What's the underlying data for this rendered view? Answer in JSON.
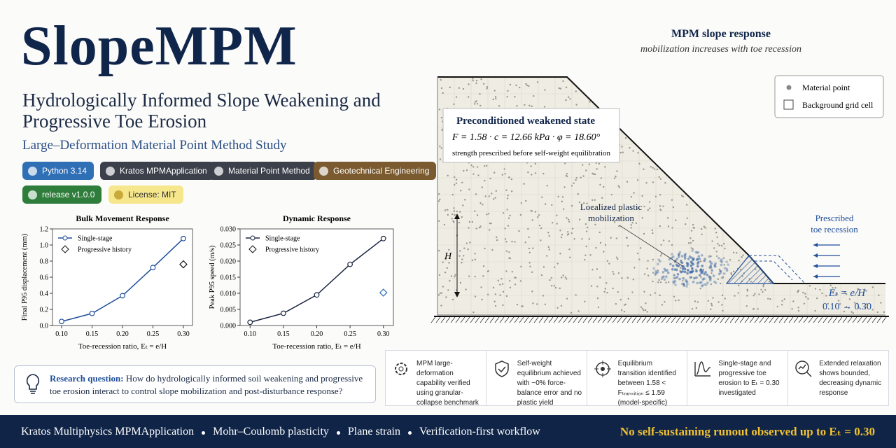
{
  "header": {
    "title": "SlopeMPM",
    "subtitle": "Hydrologically Informed Slope Weakening and Progressive Toe Erosion",
    "tagline": "Large–Deformation Material Point Method Study"
  },
  "badges": [
    {
      "label": "Python 3.14",
      "color": "#2f6fb6"
    },
    {
      "label": "Kratos MPMApplication",
      "color": "#3b404b"
    },
    {
      "label": "Material Point Method",
      "color": "#3b404b"
    },
    {
      "label": "Geotechnical Engineering",
      "color": "#7a5a2e"
    },
    {
      "label": "release v1.0.0",
      "color": "#2e7d3a"
    },
    {
      "label": "License: MIT",
      "color": "#f6e68c"
    }
  ],
  "chart_data": [
    {
      "type": "line",
      "title": "Bulk Movement Response",
      "x_label": "Toe-recession ratio, Eₜ = e/H",
      "y_label": "Final P95 displacement (mm)",
      "x": [
        0.1,
        0.15,
        0.2,
        0.25,
        0.3
      ],
      "series": [
        {
          "name": "Single-stage",
          "color": "#1f4e9a",
          "values": [
            0.05,
            0.15,
            0.37,
            0.72,
            1.08
          ]
        },
        {
          "name": "Progressive history",
          "color": "#111111",
          "values": [
            null,
            null,
            null,
            null,
            0.76
          ]
        }
      ],
      "xlim": [
        0.085,
        0.315
      ],
      "xticks": [
        {
          "value": 0.1,
          "label": "0.10"
        },
        {
          "value": 0.15,
          "label": "0.15"
        },
        {
          "value": 0.2,
          "label": "0.20"
        },
        {
          "value": 0.25,
          "label": "0.25"
        },
        {
          "value": 0.3,
          "label": "0.30"
        }
      ],
      "ylim": [
        0,
        1.2
      ],
      "yticks": [
        {
          "value": 0,
          "label": "0.0"
        },
        0.2,
        0.4,
        0.6,
        0.8,
        {
          "value": 1,
          "label": "1.0"
        },
        1.2
      ]
    },
    {
      "type": "line",
      "title": "Dynamic Response",
      "x_label": "Toe-recession ratio, Eₜ = e/H",
      "y_label": "Peak P95 speed (m/s)",
      "x": [
        0.1,
        0.15,
        0.2,
        0.25,
        0.3
      ],
      "series": [
        {
          "name": "Single-stage",
          "color": "#1a2540",
          "values": [
            0.001,
            0.0038,
            0.0095,
            0.019,
            0.027
          ]
        },
        {
          "name": "Progressive history",
          "color": "#2f6fb6",
          "values": [
            null,
            null,
            null,
            null,
            0.0102
          ]
        }
      ],
      "xlim": [
        0.085,
        0.315
      ],
      "xticks": [
        {
          "value": 0.1,
          "label": "0.10"
        },
        {
          "value": 0.15,
          "label": "0.15"
        },
        {
          "value": 0.2,
          "label": "0.20"
        },
        {
          "value": 0.25,
          "label": "0.25"
        },
        {
          "value": 0.3,
          "label": "0.30"
        }
      ],
      "ylim": [
        0,
        0.03
      ],
      "yticks": [
        {
          "value": 0,
          "label": "0.000"
        },
        {
          "value": 0.005,
          "label": "0.005"
        },
        {
          "value": 0.01,
          "label": "0.010"
        },
        {
          "value": 0.015,
          "label": "0.015"
        },
        {
          "value": 0.02,
          "label": "0.020"
        },
        {
          "value": 0.025,
          "label": "0.025"
        },
        {
          "value": 0.03,
          "label": "0.030"
        }
      ]
    }
  ],
  "research": {
    "label": "Research question:",
    "text": "How do hydrologically informed soil weakening and progressive toe erosion interact to control slope mobilization and post-disturbance response?"
  },
  "diagram": {
    "title": "MPM slope response",
    "subtitle": "mobilization increases with toe recession",
    "legend": [
      "Material point",
      "Background grid cell"
    ],
    "state_title": "Preconditioned weakened state",
    "state_params": "F = 1.58 · c = 12.66 kPa · φ = 18.60°",
    "state_note": "strength prescribed before self-weight equilibration",
    "plastic": "Localized plastic mobilization",
    "recession": "Prescribed toe recession",
    "height": "H",
    "ratio": "Eₜ = e/H",
    "range": "0.10 → 0.30"
  },
  "cards": [
    "MPM large-deformation capability verified using granular-collapse benchmark",
    "Self-weight equilibrium achieved with ~0% force-balance error and no plastic yield",
    "Equilibrium transition identified between 1.58 < Fₜᵣₐₙₛᵢₜᵢₒₙ ≤ 1.59 (model-specific)",
    "Single-stage and progressive toe erosion to Eₜ = 0.30 investigated",
    "Extended relaxation shows bounded, decreasing dynamic response"
  ],
  "footer": {
    "items": [
      "Kratos Multiphysics MPMApplication",
      "Mohr–Coulomb plasticity",
      "Plane strain",
      "Verification-first workflow"
    ],
    "conclusion": "No self-sustaining runout observed up to Eₜ = 0.30"
  }
}
